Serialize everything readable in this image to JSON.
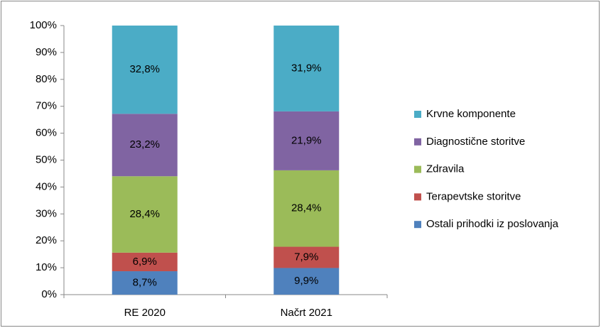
{
  "chart_data": {
    "type": "stacked_bar",
    "categories": [
      "RE 2020",
      "Načrt 2021"
    ],
    "series": [
      {
        "name": "Ostali prihodki iz poslovanja",
        "color": "#4f81bd",
        "values": [
          8.7,
          9.9
        ],
        "value_labels": [
          "8,7%",
          "9,9%"
        ]
      },
      {
        "name": "Terapevtske storitve",
        "color": "#c0504d",
        "values": [
          6.9,
          7.9
        ],
        "value_labels": [
          "6,9%",
          "7,9%"
        ]
      },
      {
        "name": "Zdravila",
        "color": "#9bbb59",
        "values": [
          28.4,
          28.4
        ],
        "value_labels": [
          "28,4%",
          "28,4%"
        ]
      },
      {
        "name": "Diagnostične storitve",
        "color": "#8064a2",
        "values": [
          23.2,
          21.9
        ],
        "value_labels": [
          "23,2%",
          "21,9%"
        ]
      },
      {
        "name": "Krvne komponente",
        "color": "#4bacc6",
        "values": [
          32.8,
          31.9
        ],
        "value_labels": [
          "32,8%",
          "31,9%"
        ]
      }
    ],
    "ylim": [
      0,
      100
    ],
    "yticks": [
      {
        "value": 0,
        "label": "0%"
      },
      {
        "value": 10,
        "label": "10%"
      },
      {
        "value": 20,
        "label": "20%"
      },
      {
        "value": 30,
        "label": "30%"
      },
      {
        "value": 40,
        "label": "40%"
      },
      {
        "value": 50,
        "label": "50%"
      },
      {
        "value": 60,
        "label": "60%"
      },
      {
        "value": 70,
        "label": "70%"
      },
      {
        "value": 80,
        "label": "80%"
      },
      {
        "value": 90,
        "label": "90%"
      },
      {
        "value": 100,
        "label": "100%"
      }
    ],
    "legend": "right"
  }
}
